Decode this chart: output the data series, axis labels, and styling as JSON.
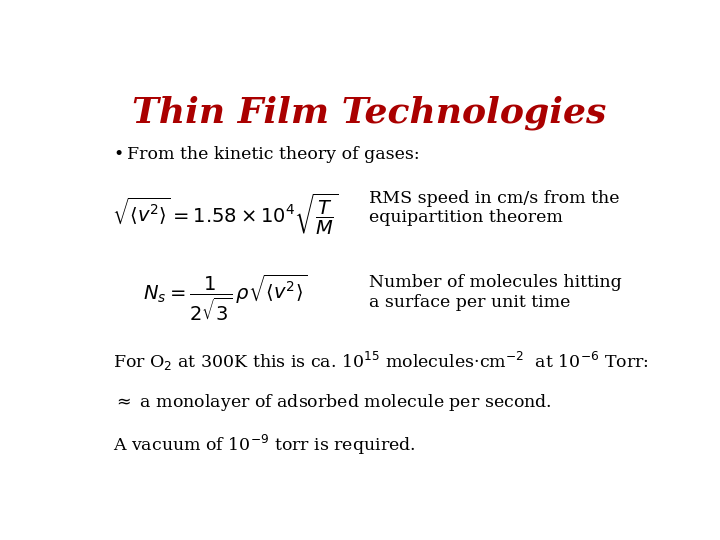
{
  "title": "Thin Film Technologies",
  "title_color": "#aa0000",
  "title_fontsize": 26,
  "background_color": "#ffffff",
  "bullet_text": "From the kinetic theory of gases:",
  "formula1": "$\\sqrt{\\langle v^2 \\rangle} = 1.58 \\times 10^4 \\sqrt{\\dfrac{T}{M}}$",
  "formula1_annotation": "RMS speed in cm/s from the\nequipartition theorem",
  "formula2": "$N_s = \\dfrac{1}{2\\sqrt{3}}\\, \\rho \\sqrt{\\langle v^2 \\rangle}$",
  "formula2_annotation": "Number of molecules hitting\na surface per unit time",
  "line3": "For O$_2$ at 300K this is ca. 10$^{15}$ molecules·cm$^{-2}$  at 10$^{-6}$ Torr:",
  "line4": "$\\approx$ a monolayer of adsorbed molecule per second.",
  "line5": "A vacuum of 10$^{-9}$ torr is required.",
  "text_color": "#000000",
  "text_fontsize": 12.5,
  "formula_fontsize": 14
}
